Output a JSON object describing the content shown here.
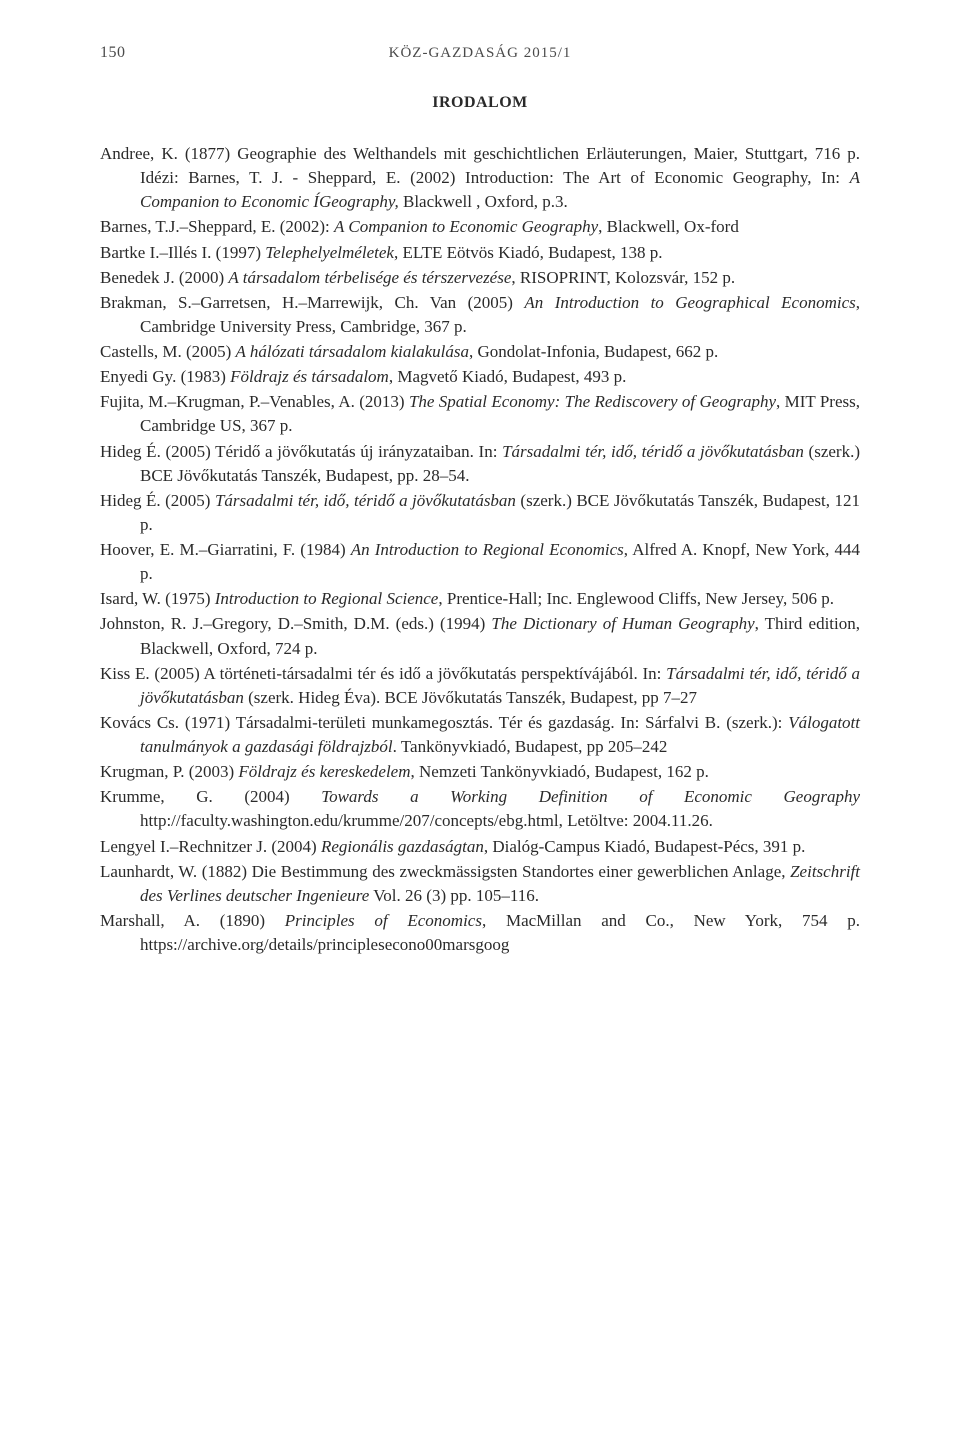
{
  "header": {
    "page_number": "150",
    "journal": "KÖZ-GAZDASÁG 2015/1"
  },
  "section_title": "IRODALOM",
  "references": [
    "Andree, K. (1877) Geographie des Welthandels mit geschichtlichen Erläuterungen, Maier, Stuttgart, 716 p. Idézi: Barnes, T. J. - Sheppard, E. (2002) Introduction: The Art of Economic Geography, In: <em>A Companion to Economic ÍGeography,</em> Blackwell , Oxford, p.3.",
    "Barnes, T.J.–Sheppard, E. (2002): <em>A Companion to Economic Geography</em>, Blackwell, Ox-ford",
    "Bartke I.–Illés I. (1997) <em>Telephelyelméletek</em>, ELTE Eötvös Kiadó, Budapest, 138 p.",
    "Benedek J. (2000) <em>A társadalom térbelisége és térszervezése</em>, RISOPRINT, Kolozsvár, 152 p.",
    "Brakman, S.–Garretsen, H.–Marrewijk, Ch. Van (2005) <em>An Introduction to Geographical Economics</em>, Cambridge University Press, Cambridge, 367 p.",
    "Castells, M. (2005) <em>A hálózati társadalom kialakulása</em>, Gondolat-Infonia, Budapest, 662 p.",
    "Enyedi Gy. (1983) <em>Földrajz és társadalom</em>, Magvető Kiadó, Budapest, 493 p.",
    "Fujita, M.–Krugman, P.–Venables, A. (2013) <em>The Spatial Economy: The Rediscovery of Geography</em>, MIT Press, Cambridge US, 367 p.",
    "Hideg É. (2005) Téridő a jövőkutatás új irányzataiban. In: <em>Társadalmi tér, idő, téridő a jövőkutatásban</em> (szerk.) BCE Jövőkutatás Tanszék, Budapest, pp. 28–54.",
    "Hideg É. (2005) <em>Társadalmi tér, idő, téridő a jövőkutatásban</em> (szerk.) BCE Jövőkutatás Tanszék, Budapest, 121 p.",
    "Hoover, E. M.–Giarratini, F. (1984) <em>An Introduction to Regional Economics</em>, Alfred A. Knopf, New York, 444 p.",
    "Isard, W. (1975) <em>Introduction to Regional Science</em>, Prentice-Hall; Inc. Englewood Cliffs, New Jersey, 506 p.",
    "Johnston, R. J.–Gregory, D.–Smith, D.M. (eds.) (1994) <em>The Dictionary of Human Geography</em>, Third edition, Blackwell, Oxford, 724 p.",
    "Kiss E. (2005) A történeti-társadalmi tér és idő a jövőkutatás perspektívájából. In: <em>Társadalmi tér, idő, téridő a jövőkutatásban</em> (szerk. Hideg Éva). BCE Jövőkutatás Tanszék, Budapest, pp 7–27",
    "Kovács Cs. (1971) Társadalmi-területi munkamegosztás. Tér és gazdaság. In: Sárfalvi B. (szerk.): <em>Válogatott tanulmányok a gazdasági földrajzból</em>. Tankönyvkiadó, Budapest, pp 205–242",
    "Krugman, P. (2003) <em>Földrajz és kereskedelem</em>, Nemzeti Tankönyvkiadó, Budapest, 162 p.",
    "Krumme, G. (2004) <em>Towards a Working Definition of Economic Geography</em> http://faculty.washington.edu/krumme/207/concepts/ebg.html, Letöltve: 2004.11.26.",
    "Lengyel I.–Rechnitzer J. (2004) <em>Regionális gazdaságtan</em>, Dialóg-Campus Kiadó, Budapest-Pécs, 391 p.",
    "Launhardt, W. (1882) Die Bestimmung des zweckmässigsten Standortes einer gewerblichen Anlage, <em>Zeitschrift des Verlines deutscher Ingenieure</em> Vol. 26 (3) pp. 105–116.",
    "Marshall, A. (1890) <em>Principles of Economics</em>, MacMillan and Co., New York, 754 p. https://archive.org/details/principlesecono00marsgoog"
  ]
}
